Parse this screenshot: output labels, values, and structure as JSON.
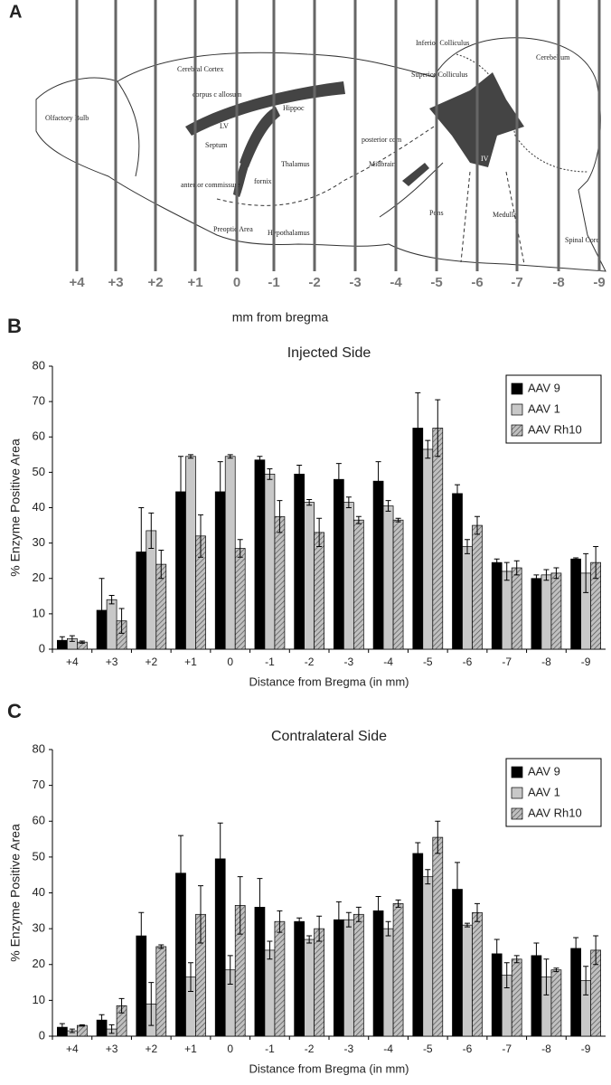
{
  "diagram": {
    "panel_label": "A",
    "axis_label": "mm from bregma",
    "section_labels": [
      "+4",
      "+3",
      "+2",
      "+1",
      "0",
      "-1",
      "-2",
      "-3",
      "-4",
      "-5",
      "-6",
      "-7",
      "-8",
      "-9"
    ],
    "region_labels": [
      "Olfactory Bulb",
      "Cerebral Cortex",
      "corpus c allosum",
      "LV",
      "Hippoc",
      "Septum",
      "Thalamus",
      "anterior commissure",
      "fornix",
      "Preoptic Area",
      "Hypothalamus",
      "Superior Colliculus",
      "Inferior Colliculus",
      "posterior com",
      "Midbrain",
      "Pons",
      "Medulla",
      "IV",
      "Cerebellum",
      "Spinal Cord"
    ]
  },
  "chart_data": [
    {
      "type": "bar",
      "panel_label": "B",
      "title": "Injected Side",
      "x_label": "Distance from Bregma (in mm)",
      "y_label": "% Enzyme Positive Area",
      "categories": [
        "+4",
        "+3",
        "+2",
        "+1",
        "0",
        "-1",
        "-2",
        "-3",
        "-4",
        "-5",
        "-6",
        "-7",
        "-8",
        "-9"
      ],
      "series": [
        {
          "name": "AAV 9",
          "color": "#000000",
          "hatch": false,
          "values": [
            2.5,
            11,
            27.5,
            44.5,
            44.5,
            53.5,
            49.5,
            48,
            47.5,
            62.5,
            44,
            24.5,
            20,
            25.5
          ],
          "errors": [
            1,
            9,
            12.5,
            10,
            8.5,
            1,
            2.5,
            4.5,
            5.5,
            10,
            2.5,
            1,
            1,
            0.3
          ]
        },
        {
          "name": "AAV 1",
          "color": "#c8c8c8",
          "hatch": false,
          "values": [
            3,
            14,
            33.5,
            54.5,
            54.5,
            49.5,
            41.5,
            41.5,
            40.5,
            56.5,
            29,
            22,
            21,
            21.5
          ],
          "errors": [
            0.8,
            1.2,
            5,
            0.5,
            0.5,
            1.5,
            0.8,
            1.5,
            1.5,
            2.5,
            2,
            2.5,
            1.5,
            5.5
          ]
        },
        {
          "name": "AAV Rh10",
          "color": "#a8a8a8",
          "hatch": true,
          "values": [
            2,
            8,
            24,
            32,
            28.5,
            37.5,
            33,
            36.5,
            36.5,
            62.5,
            35,
            23,
            21.5,
            24.5
          ],
          "errors": [
            0.3,
            3.5,
            4,
            6,
            2.5,
            4.5,
            4,
            1,
            0.5,
            8,
            2.5,
            2,
            1.5,
            4.5
          ]
        }
      ],
      "ylim": [
        0,
        80
      ],
      "yticks": [
        0,
        10,
        20,
        30,
        40,
        50,
        60,
        70,
        80
      ],
      "legend": "upper right",
      "grid": false
    },
    {
      "type": "bar",
      "panel_label": "C",
      "title": "Contralateral Side",
      "x_label": "Distance from Bregma (in mm)",
      "y_label": "% Enzyme Positive Area",
      "categories": [
        "+4",
        "+3",
        "+2",
        "+1",
        "0",
        "-1",
        "-2",
        "-3",
        "-4",
        "-5",
        "-6",
        "-7",
        "-8",
        "-9"
      ],
      "series": [
        {
          "name": "AAV 9",
          "color": "#000000",
          "hatch": false,
          "values": [
            2.5,
            4.5,
            28,
            45.5,
            49.5,
            36,
            32,
            32.5,
            35,
            51,
            41,
            23,
            22.5,
            24.5
          ],
          "errors": [
            1,
            1.5,
            6.5,
            10.5,
            10,
            8,
            1,
            5,
            4,
            3,
            7.5,
            4,
            3.5,
            3
          ]
        },
        {
          "name": "AAV 1",
          "color": "#c8c8c8",
          "hatch": false,
          "values": [
            1.5,
            2,
            9,
            16.5,
            18.5,
            24,
            27,
            32.5,
            30,
            44.5,
            31,
            17,
            16.5,
            15.5
          ],
          "errors": [
            0.5,
            1.2,
            6,
            4,
            4,
            2.5,
            1,
            2,
            2,
            2,
            0.5,
            3.5,
            5,
            4
          ]
        },
        {
          "name": "AAV Rh10",
          "color": "#a8a8a8",
          "hatch": true,
          "values": [
            3,
            8.5,
            25,
            34,
            36.5,
            32,
            30,
            34,
            37,
            55.5,
            34.5,
            21.5,
            18.5,
            24
          ],
          "errors": [
            0.2,
            2,
            0.5,
            8,
            8,
            3,
            3.5,
            2,
            1,
            4.5,
            2.5,
            1,
            0.5,
            4
          ]
        }
      ],
      "ylim": [
        0,
        80
      ],
      "yticks": [
        0,
        10,
        20,
        30,
        40,
        50,
        60,
        70,
        80
      ],
      "legend": "upper right",
      "grid": false
    }
  ]
}
